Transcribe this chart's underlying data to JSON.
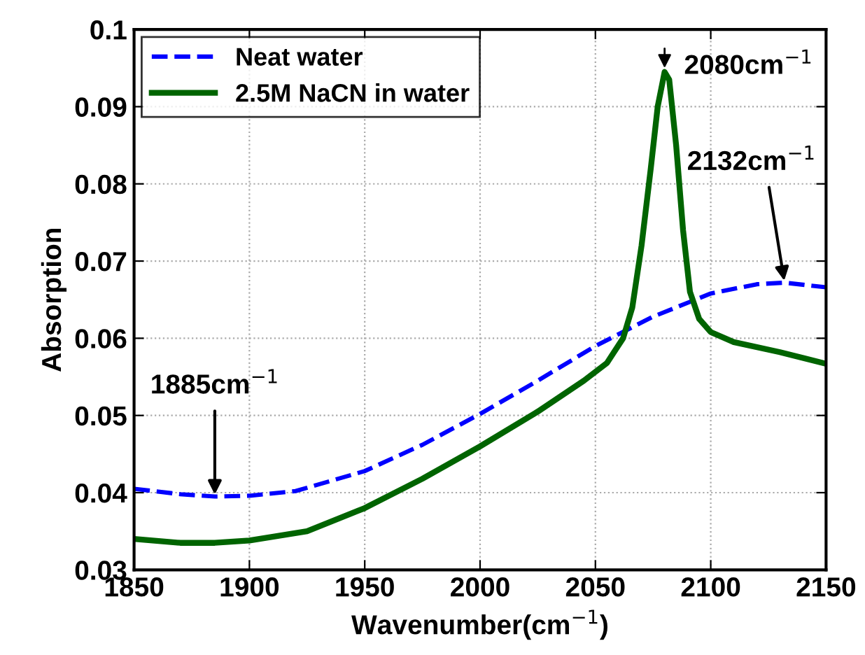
{
  "chart_data": {
    "type": "line",
    "xlabel": "Wavenumber(cm$^{−1}$)",
    "ylabel": "Absorption",
    "xlim": [
      1850,
      2150
    ],
    "xticks": [
      1850,
      1900,
      1950,
      2000,
      2050,
      2100,
      2150
    ],
    "ylim": [
      0.03,
      0.1
    ],
    "yticks": [
      0.03,
      0.04,
      0.05,
      0.06,
      0.07,
      0.08,
      0.09,
      {
        "value": 0.1,
        "label": "0.1"
      }
    ],
    "grid": true,
    "legend": "top left",
    "series": [
      {
        "name": "Neat water",
        "color": "#0000ff",
        "line_style": "dashed",
        "x": [
          1850,
          1870,
          1885,
          1900,
          1920,
          1950,
          1975,
          2000,
          2025,
          2050,
          2075,
          2100,
          2120,
          2132,
          2150
        ],
        "values": [
          0.0405,
          0.0398,
          0.0395,
          0.0396,
          0.0402,
          0.0428,
          0.0462,
          0.0502,
          0.0545,
          0.059,
          0.0628,
          0.0658,
          0.067,
          0.0672,
          0.0666
        ]
      },
      {
        "name": "2.5M NaCN in water",
        "color": "#006400",
        "line_style": "solid",
        "x": [
          1850,
          1870,
          1885,
          1900,
          1925,
          1950,
          1975,
          2000,
          2025,
          2045,
          2055,
          2062,
          2066,
          2070,
          2074,
          2077,
          2080,
          2082,
          2085,
          2088,
          2091,
          2095,
          2100,
          2110,
          2130,
          2150
        ],
        "values": [
          0.034,
          0.0335,
          0.0335,
          0.0338,
          0.035,
          0.038,
          0.0418,
          0.046,
          0.0505,
          0.0545,
          0.0568,
          0.06,
          0.064,
          0.072,
          0.082,
          0.09,
          0.0945,
          0.0935,
          0.085,
          0.074,
          0.066,
          0.0625,
          0.0608,
          0.0595,
          0.0582,
          0.0567
        ]
      }
    ],
    "annotations": [
      {
        "text": "1885cm$^{−1}$",
        "x": 1885,
        "y": 0.0395
      },
      {
        "text": "2080cm$^{−1}$",
        "x": 2080,
        "y": 0.0945
      },
      {
        "text": "2132cm$^{−1}$",
        "x": 2132,
        "y": 0.0672
      }
    ]
  }
}
